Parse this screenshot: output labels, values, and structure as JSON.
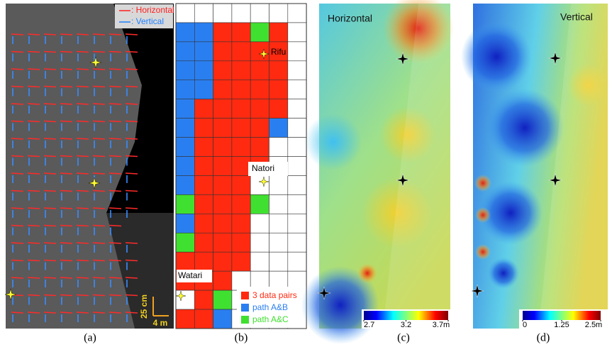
{
  "panels": {
    "a": {
      "legend": [
        ": Horizontal",
        ": Vertical"
      ],
      "scale": [
        "25 cm",
        "4 m"
      ],
      "caption": "(a)"
    },
    "b": {
      "places": [
        "Rifu",
        "Natori",
        "Watari"
      ],
      "legend": [
        "3 data pairs",
        "path A&B",
        "path A&C"
      ],
      "caption": "(b)"
    },
    "c": {
      "title": "Horizontal",
      "colorbar": [
        {
          "value": 2.7,
          "label": "2.7"
        },
        {
          "value": 3.2,
          "label": "3.2"
        },
        {
          "value": 3.7,
          "label": "3.7m"
        }
      ],
      "caption": "(c)"
    },
    "d": {
      "title": "Vertical",
      "colorbar": [
        {
          "value": 0,
          "label": "0"
        },
        {
          "value": 1.25,
          "label": "1.25"
        },
        {
          "value": 2.5,
          "label": "2.5m"
        }
      ],
      "caption": "(d)"
    }
  }
}
